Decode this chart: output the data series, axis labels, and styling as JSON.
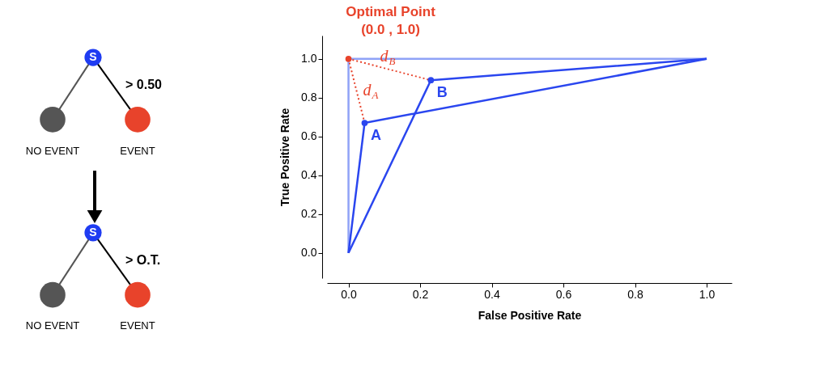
{
  "chart_data": [
    {
      "type": "other",
      "annotations": [
        "S",
        "> 0.50",
        "NO EVENT",
        "EVENT",
        "S",
        "> O.T.",
        "NO EVENT",
        "EVENT"
      ],
      "colors": [
        "#1f3cf2",
        "#555555",
        "#e8432b",
        "#000000"
      ]
    },
    {
      "type": "line",
      "xlabel": "False Positive Rate",
      "ylabel": "True Positive Rate",
      "xlim": [
        -0.06,
        1.07
      ],
      "ylim": [
        -0.13,
        1.12
      ],
      "xticks": [
        {
          "value": 0,
          "label": "0.0"
        },
        {
          "value": 0.2,
          "label": "0.2"
        },
        {
          "value": 0.4,
          "label": "0.4"
        },
        {
          "value": 0.6,
          "label": "0.6"
        },
        {
          "value": 0.8,
          "label": "0.8"
        },
        {
          "value": 1,
          "label": "1.0"
        }
      ],
      "yticks": [
        {
          "value": 0,
          "label": "0.0"
        },
        {
          "value": 0.2,
          "label": "0.2"
        },
        {
          "value": 0.4,
          "label": "0.4"
        },
        {
          "value": 0.6,
          "label": "0.6"
        },
        {
          "value": 0.8,
          "label": "0.8"
        },
        {
          "value": 1,
          "label": "1.0"
        }
      ],
      "grid": false,
      "series": [
        {
          "type": "line",
          "color": "#8fa2f7",
          "x": [
            0,
            0,
            1
          ],
          "values": [
            0,
            1,
            1
          ]
        },
        {
          "type": "line",
          "color": "#2a46ef",
          "x": [
            0,
            0.045,
            1
          ],
          "values": [
            0,
            0.67,
            1
          ]
        },
        {
          "type": "line",
          "color": "#2a46ef",
          "x": [
            0,
            0.23,
            1
          ],
          "values": [
            0,
            0.89,
            1
          ]
        },
        {
          "type": "line",
          "color": "#e8432b",
          "line_style": "dotted",
          "x": [
            0,
            0.045
          ],
          "values": [
            1,
            0.67
          ]
        },
        {
          "type": "line",
          "color": "#e8432b",
          "line_style": "dotted",
          "x": [
            0,
            0.23
          ],
          "values": [
            1,
            0.89
          ]
        },
        {
          "type": "scatter",
          "name": "A",
          "color": "#2a46ef",
          "x": [
            0.045
          ],
          "values": [
            0.67
          ]
        },
        {
          "type": "scatter",
          "name": "B",
          "color": "#2a46ef",
          "x": [
            0.23
          ],
          "values": [
            0.89
          ]
        },
        {
          "type": "scatter",
          "color": "#e8432b",
          "x": [
            0
          ],
          "values": [
            1
          ]
        }
      ],
      "annotations": [
        {
          "text": "Optimal Point",
          "x": 0,
          "y": 1
        },
        {
          "text": "(0.0 , 1.0)",
          "x": 0,
          "y": 1
        },
        "d$_{A}$",
        "d$_{B}$"
      ]
    }
  ]
}
